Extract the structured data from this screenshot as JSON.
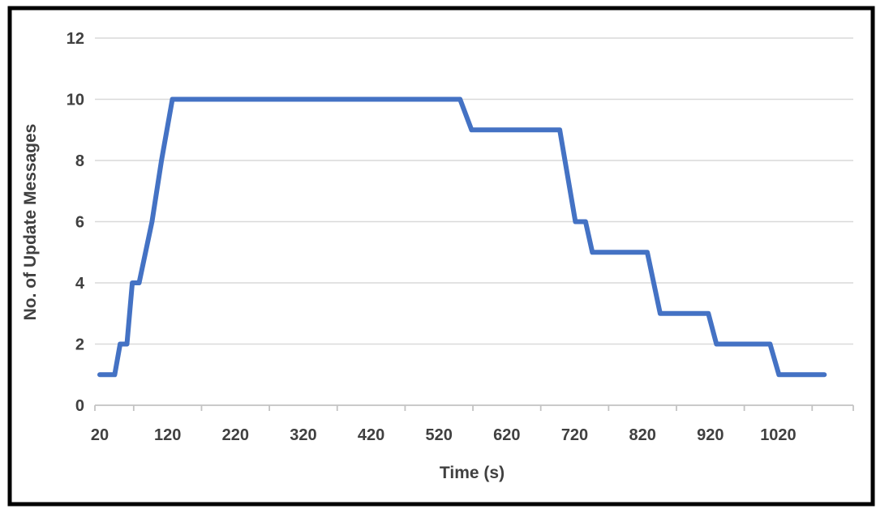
{
  "chart_data": {
    "type": "line",
    "title": "",
    "xlabel": "Time (s)",
    "ylabel": "No. of Update Messages",
    "x_tick_labels": [
      20,
      120,
      220,
      320,
      420,
      520,
      620,
      720,
      820,
      920,
      1020
    ],
    "y_tick_labels": [
      0,
      2,
      4,
      6,
      8,
      10,
      12
    ],
    "xlim": [
      20,
      1090
    ],
    "ylim": [
      0,
      12
    ],
    "grid": true,
    "legend_position": "none",
    "series": [
      {
        "name": "No. of Update Messages",
        "color": "#4472C4",
        "points": [
          [
            20,
            1
          ],
          [
            42,
            1
          ],
          [
            50,
            2
          ],
          [
            60,
            2
          ],
          [
            68,
            4
          ],
          [
            78,
            4
          ],
          [
            97,
            6
          ],
          [
            111,
            8
          ],
          [
            127,
            10
          ],
          [
            551,
            10
          ],
          [
            568,
            9
          ],
          [
            698,
            9
          ],
          [
            721,
            6
          ],
          [
            736,
            6
          ],
          [
            746,
            5
          ],
          [
            827,
            5
          ],
          [
            846,
            3
          ],
          [
            917,
            3
          ],
          [
            929,
            2
          ],
          [
            1008,
            2
          ],
          [
            1021,
            1
          ],
          [
            1088,
            1
          ]
        ]
      }
    ]
  },
  "style": {
    "line_color": "#4472C4",
    "grid_color": "#D9D9D9",
    "axis_color": "#C3C3C3",
    "text_color": "#404040",
    "frame_color": "#000000",
    "background": "#FFFFFF"
  }
}
